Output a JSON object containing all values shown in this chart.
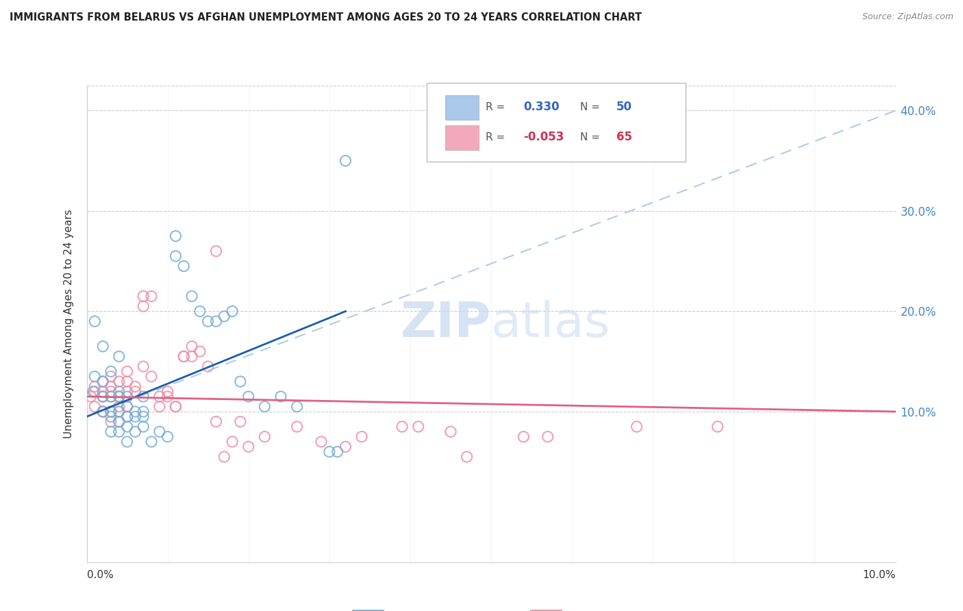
{
  "title": "IMMIGRANTS FROM BELARUS VS AFGHAN UNEMPLOYMENT AMONG AGES 20 TO 24 YEARS CORRELATION CHART",
  "source": "Source: ZipAtlas.com",
  "ylabel": "Unemployment Among Ages 20 to 24 years",
  "y_tick_labels": [
    "10.0%",
    "20.0%",
    "30.0%",
    "40.0%"
  ],
  "y_tick_values": [
    0.1,
    0.2,
    0.3,
    0.4
  ],
  "x_range": [
    0.0,
    0.1
  ],
  "y_range": [
    -0.05,
    0.425
  ],
  "legend_entries": [
    {
      "r_val": "0.330",
      "n_val": "50",
      "color": "#aac8ea"
    },
    {
      "r_val": "-0.053",
      "n_val": "65",
      "color": "#f4a8bc"
    }
  ],
  "belarus_color": "#7ab0d8",
  "afghan_color": "#f090a8",
  "belarus_line_color": "#1a5cb0",
  "afghan_line_color": "#e06080",
  "dashed_line_color": "#b0cce8",
  "watermark_zip": "ZIP",
  "watermark_atlas": "atlas",
  "belarus_scatter": [
    [
      0.0008,
      0.12
    ],
    [
      0.001,
      0.135
    ],
    [
      0.001,
      0.19
    ],
    [
      0.002,
      0.165
    ],
    [
      0.002,
      0.115
    ],
    [
      0.002,
      0.13
    ],
    [
      0.002,
      0.1
    ],
    [
      0.003,
      0.115
    ],
    [
      0.003,
      0.095
    ],
    [
      0.003,
      0.14
    ],
    [
      0.003,
      0.1
    ],
    [
      0.003,
      0.08
    ],
    [
      0.004,
      0.155
    ],
    [
      0.004,
      0.12
    ],
    [
      0.004,
      0.115
    ],
    [
      0.004,
      0.1
    ],
    [
      0.004,
      0.09
    ],
    [
      0.004,
      0.08
    ],
    [
      0.005,
      0.115
    ],
    [
      0.005,
      0.105
    ],
    [
      0.005,
      0.085
    ],
    [
      0.005,
      0.095
    ],
    [
      0.005,
      0.07
    ],
    [
      0.006,
      0.095
    ],
    [
      0.006,
      0.08
    ],
    [
      0.006,
      0.1
    ],
    [
      0.007,
      0.095
    ],
    [
      0.007,
      0.115
    ],
    [
      0.007,
      0.1
    ],
    [
      0.007,
      0.085
    ],
    [
      0.008,
      0.07
    ],
    [
      0.009,
      0.08
    ],
    [
      0.01,
      0.075
    ],
    [
      0.011,
      0.255
    ],
    [
      0.011,
      0.275
    ],
    [
      0.012,
      0.245
    ],
    [
      0.013,
      0.215
    ],
    [
      0.014,
      0.2
    ],
    [
      0.015,
      0.19
    ],
    [
      0.016,
      0.19
    ],
    [
      0.017,
      0.195
    ],
    [
      0.018,
      0.2
    ],
    [
      0.019,
      0.13
    ],
    [
      0.02,
      0.115
    ],
    [
      0.022,
      0.105
    ],
    [
      0.024,
      0.115
    ],
    [
      0.026,
      0.105
    ],
    [
      0.03,
      0.06
    ],
    [
      0.031,
      0.06
    ],
    [
      0.032,
      0.35
    ]
  ],
  "afghan_scatter": [
    [
      0.0005,
      0.115
    ],
    [
      0.001,
      0.12
    ],
    [
      0.001,
      0.105
    ],
    [
      0.001,
      0.125
    ],
    [
      0.002,
      0.115
    ],
    [
      0.002,
      0.1
    ],
    [
      0.002,
      0.13
    ],
    [
      0.002,
      0.12
    ],
    [
      0.002,
      0.115
    ],
    [
      0.002,
      0.1
    ],
    [
      0.003,
      0.12
    ],
    [
      0.003,
      0.115
    ],
    [
      0.003,
      0.1
    ],
    [
      0.003,
      0.09
    ],
    [
      0.003,
      0.135
    ],
    [
      0.003,
      0.125
    ],
    [
      0.004,
      0.115
    ],
    [
      0.004,
      0.1
    ],
    [
      0.004,
      0.13
    ],
    [
      0.004,
      0.115
    ],
    [
      0.004,
      0.105
    ],
    [
      0.004,
      0.09
    ],
    [
      0.005,
      0.13
    ],
    [
      0.005,
      0.12
    ],
    [
      0.005,
      0.105
    ],
    [
      0.005,
      0.095
    ],
    [
      0.005,
      0.14
    ],
    [
      0.006,
      0.125
    ],
    [
      0.006,
      0.12
    ],
    [
      0.007,
      0.215
    ],
    [
      0.007,
      0.205
    ],
    [
      0.007,
      0.145
    ],
    [
      0.008,
      0.215
    ],
    [
      0.008,
      0.135
    ],
    [
      0.009,
      0.115
    ],
    [
      0.009,
      0.105
    ],
    [
      0.01,
      0.115
    ],
    [
      0.01,
      0.12
    ],
    [
      0.011,
      0.105
    ],
    [
      0.011,
      0.105
    ],
    [
      0.012,
      0.155
    ],
    [
      0.012,
      0.155
    ],
    [
      0.013,
      0.155
    ],
    [
      0.013,
      0.165
    ],
    [
      0.014,
      0.16
    ],
    [
      0.015,
      0.145
    ],
    [
      0.016,
      0.09
    ],
    [
      0.016,
      0.26
    ],
    [
      0.017,
      0.055
    ],
    [
      0.018,
      0.07
    ],
    [
      0.019,
      0.09
    ],
    [
      0.02,
      0.065
    ],
    [
      0.022,
      0.075
    ],
    [
      0.026,
      0.085
    ],
    [
      0.029,
      0.07
    ],
    [
      0.032,
      0.065
    ],
    [
      0.034,
      0.075
    ],
    [
      0.039,
      0.085
    ],
    [
      0.041,
      0.085
    ],
    [
      0.045,
      0.08
    ],
    [
      0.047,
      0.055
    ],
    [
      0.054,
      0.075
    ],
    [
      0.057,
      0.075
    ],
    [
      0.068,
      0.085
    ],
    [
      0.078,
      0.085
    ]
  ],
  "belarus_line": [
    [
      0.0,
      0.095
    ],
    [
      0.032,
      0.2
    ]
  ],
  "afghan_line": [
    [
      0.0,
      0.115
    ],
    [
      0.1,
      0.1
    ]
  ],
  "dashed_line": [
    [
      0.0,
      0.095
    ],
    [
      0.1,
      0.4
    ]
  ]
}
